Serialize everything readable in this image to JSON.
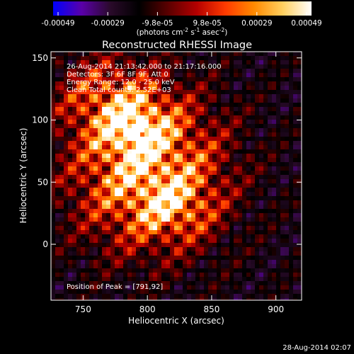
{
  "colorbar": {
    "ticks": [
      "-0.00049",
      "-0.00029",
      "-9.8e-05",
      "9.8e-05",
      "0.00029",
      "0.00049"
    ],
    "unit_main": "(photons cm",
    "unit_exp1": "-2",
    "unit_mid1": " s",
    "unit_exp2": "-1",
    "unit_mid2": " asec",
    "unit_exp3": "-2",
    "unit_end": ")",
    "stops": [
      "#0000ff",
      "#5a00a8",
      "#2a0a2a",
      "#000000",
      "#5a0000",
      "#b40000",
      "#ff3a00",
      "#ff8a00",
      "#ffd060",
      "#ffffff"
    ]
  },
  "plot": {
    "title": "Reconstructed RHESSI Image",
    "info_lines": [
      "26-Aug-2014 21:13:42.000 to 21:17:16.000",
      "Detectors: 3F 6F 8F 9F, Att 0",
      "Energy Range: 12.0 - 25.0 keV",
      "Clean     Total counts: 2.52E+03"
    ],
    "peak_label": "Position of Peak = [791,92]",
    "xlabel": "Heliocentric X (arcsec)",
    "ylabel": "Heliocentric Y (arcsec)",
    "xticks": [
      750,
      800,
      850,
      900
    ],
    "yticks": [
      0,
      50,
      100,
      150
    ],
    "xrange": [
      725,
      920
    ],
    "yrange": [
      -45,
      155
    ]
  },
  "image_data": {
    "peak": [
      791,
      92
    ],
    "sources": [
      {
        "x": 800,
        "y": 60,
        "sx": 40,
        "sy": 42,
        "amp": 0.55
      },
      {
        "x": 790,
        "y": 95,
        "sx": 18,
        "sy": 18,
        "amp": 0.35
      },
      {
        "x": 820,
        "y": 30,
        "sx": 20,
        "sy": 16,
        "amp": 0.25
      },
      {
        "x": 765,
        "y": 120,
        "sx": 26,
        "sy": 22,
        "amp": 0.25
      }
    ]
  },
  "footer": {
    "timestamp": "28-Aug-2014 02:07"
  }
}
